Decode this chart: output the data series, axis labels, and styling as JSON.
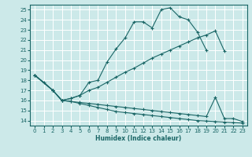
{
  "xlabel": "Humidex (Indice chaleur)",
  "bg_color": "#cce9e9",
  "line_color": "#1a6666",
  "grid_color": "#ffffff",
  "xlim": [
    -0.5,
    23.5
  ],
  "ylim": [
    13.5,
    25.5
  ],
  "xticks": [
    0,
    1,
    2,
    3,
    4,
    5,
    6,
    7,
    8,
    9,
    10,
    11,
    12,
    13,
    14,
    15,
    16,
    17,
    18,
    19,
    20,
    21,
    22,
    23
  ],
  "yticks": [
    14,
    15,
    16,
    17,
    18,
    19,
    20,
    21,
    22,
    23,
    24,
    25
  ],
  "lines": [
    {
      "x": [
        0,
        1,
        2,
        3,
        4,
        5,
        6,
        7,
        8,
        9,
        10,
        11,
        12,
        13,
        14,
        15,
        16,
        17,
        18,
        19
      ],
      "y": [
        18.5,
        17.8,
        17.0,
        16.0,
        16.2,
        16.5,
        17.8,
        18.0,
        19.8,
        21.1,
        22.2,
        23.8,
        23.8,
        23.2,
        25.0,
        25.2,
        24.3,
        24.0,
        22.8,
        21.0
      ]
    },
    {
      "x": [
        0,
        2,
        3,
        4,
        5,
        6,
        7,
        8,
        9,
        10,
        11,
        12,
        13,
        14,
        15,
        16,
        17,
        18,
        19,
        20,
        21
      ],
      "y": [
        18.5,
        17.0,
        16.0,
        16.2,
        16.5,
        17.0,
        17.3,
        17.8,
        18.3,
        18.8,
        19.2,
        19.7,
        20.2,
        20.6,
        21.0,
        21.4,
        21.8,
        22.2,
        22.5,
        22.9,
        20.9
      ]
    },
    {
      "x": [
        0,
        2,
        3,
        4,
        5,
        6,
        7,
        8,
        9,
        10,
        11,
        12,
        13,
        14,
        15,
        16,
        17,
        18,
        19,
        20,
        21,
        22,
        23
      ],
      "y": [
        18.5,
        17.0,
        16.0,
        15.9,
        15.8,
        15.7,
        15.6,
        15.5,
        15.4,
        15.3,
        15.2,
        15.1,
        15.0,
        14.9,
        14.8,
        14.7,
        14.6,
        14.5,
        14.4,
        16.3,
        14.2,
        14.2,
        13.9
      ]
    },
    {
      "x": [
        0,
        2,
        3,
        4,
        5,
        6,
        7,
        8,
        9,
        10,
        11,
        12,
        13,
        14,
        15,
        16,
        17,
        18,
        19,
        20,
        21,
        22,
        23
      ],
      "y": [
        18.5,
        17.0,
        16.0,
        15.9,
        15.7,
        15.5,
        15.3,
        15.1,
        14.9,
        14.8,
        14.7,
        14.6,
        14.5,
        14.4,
        14.3,
        14.2,
        14.1,
        14.0,
        13.95,
        13.9,
        13.85,
        13.8,
        13.75
      ]
    }
  ]
}
